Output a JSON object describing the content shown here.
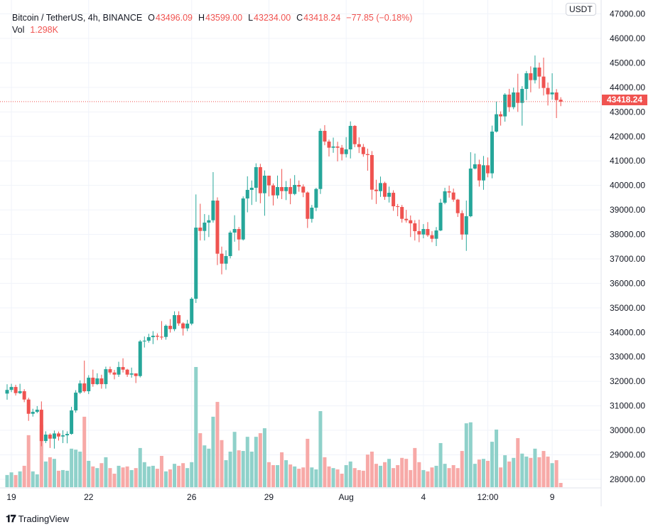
{
  "legend": {
    "symbol": "Bitcoin / TetherUS, 4h, BINANCE",
    "open_label": "O",
    "open": "43496.09",
    "high_label": "H",
    "high": "43599.00",
    "low_label": "L",
    "low": "43234.00",
    "close_label": "C",
    "close": "43418.24",
    "change": "−77.85 (−0.18%)",
    "vol_label": "Vol",
    "vol": "1.298K"
  },
  "currency_badge": "USDT",
  "last_price_label": "43418.24",
  "branding": "TradingView",
  "colors": {
    "up": "#26a69a",
    "down": "#ef5350",
    "up_volume": "#8fd1ca",
    "down_volume": "#f7a9a7",
    "grid": "#f0f3fa"
  },
  "chart_data": {
    "type": "candlestick",
    "symbol": "BTCUSDT",
    "interval": "4h",
    "ylim": [
      27800,
      47300
    ],
    "y_ticks": [
      "47000.00",
      "46000.00",
      "45000.00",
      "44000.00",
      "43000.00",
      "42000.00",
      "41000.00",
      "40000.00",
      "39000.00",
      "38000.00",
      "37000.00",
      "36000.00",
      "35000.00",
      "34000.00",
      "33000.00",
      "32000.00",
      "31000.00",
      "30000.00",
      "29000.00",
      "28000.00"
    ],
    "x_ticks": [
      {
        "label": "19",
        "index": 1
      },
      {
        "label": "22",
        "index": 19
      },
      {
        "label": "26",
        "index": 43
      },
      {
        "label": "29",
        "index": 61
      },
      {
        "label": "Aug",
        "index": 79
      },
      {
        "label": "4",
        "index": 97
      },
      {
        "label": "12:00",
        "index": 112
      },
      {
        "label": "9",
        "index": 127
      }
    ],
    "grid": true,
    "ohlc": [
      [
        31500,
        31880,
        31250,
        31650
      ],
      [
        31650,
        31900,
        31560,
        31770
      ],
      [
        31770,
        31860,
        31420,
        31519
      ],
      [
        31519,
        31900,
        31480,
        31596
      ],
      [
        31596,
        31680,
        31150,
        31257
      ],
      [
        31257,
        31330,
        30386,
        30676
      ],
      [
        30676,
        30880,
        30560,
        30754
      ],
      [
        30754,
        30990,
        30700,
        30841
      ],
      [
        30841,
        31180,
        29350,
        29563
      ],
      [
        29563,
        29960,
        29480,
        29825
      ],
      [
        29825,
        29880,
        29280,
        29660
      ],
      [
        29660,
        29990,
        29253,
        29873
      ],
      [
        29873,
        29950,
        29580,
        29747
      ],
      [
        29747,
        30000,
        29480,
        29796
      ],
      [
        29796,
        29960,
        29470,
        29854
      ],
      [
        29854,
        30960,
        29820,
        30812
      ],
      [
        30812,
        31640,
        30720,
        31538
      ],
      [
        31538,
        32040,
        31480,
        31915
      ],
      [
        31915,
        32845,
        31540,
        31596
      ],
      [
        31596,
        32250,
        31480,
        32148
      ],
      [
        32148,
        32480,
        31780,
        31886
      ],
      [
        31886,
        32330,
        31850,
        32119
      ],
      [
        32119,
        32270,
        31700,
        31886
      ],
      [
        31886,
        32600,
        31700,
        32496
      ],
      [
        32496,
        32600,
        32280,
        32360
      ],
      [
        32360,
        32470,
        32080,
        32274
      ],
      [
        32274,
        32800,
        32180,
        32583
      ],
      [
        32583,
        32940,
        32360,
        32477
      ],
      [
        32477,
        32510,
        32180,
        32274
      ],
      [
        32274,
        32560,
        32150,
        32322
      ],
      [
        32322,
        32330,
        31930,
        32216
      ],
      [
        32216,
        33690,
        32160,
        33629
      ],
      [
        33629,
        33830,
        33380,
        33658
      ],
      [
        33658,
        33940,
        33580,
        33803
      ],
      [
        33803,
        34050,
        33520,
        33861
      ],
      [
        33861,
        33960,
        33680,
        33822
      ],
      [
        33822,
        34460,
        33700,
        33813
      ],
      [
        33813,
        34320,
        33700,
        34268
      ],
      [
        34268,
        34540,
        33990,
        34132
      ],
      [
        34132,
        34860,
        34050,
        34703
      ],
      [
        34703,
        34860,
        34270,
        34365
      ],
      [
        34365,
        34410,
        33870,
        34161
      ],
      [
        34161,
        34510,
        34050,
        34355
      ],
      [
        34355,
        35430,
        34290,
        35371
      ],
      [
        35371,
        39630,
        35200,
        38276
      ],
      [
        38276,
        39250,
        37750,
        38140
      ],
      [
        38140,
        38830,
        37750,
        38479
      ],
      [
        38479,
        38790,
        37890,
        38576
      ],
      [
        38576,
        40541,
        38480,
        39379
      ],
      [
        39379,
        39510,
        36746,
        37211
      ],
      [
        37211,
        37500,
        36369,
        36804
      ],
      [
        36804,
        37350,
        36550,
        37114
      ],
      [
        37114,
        38150,
        37020,
        38073
      ],
      [
        38073,
        38780,
        37700,
        38218
      ],
      [
        38218,
        38300,
        37340,
        37792
      ],
      [
        37792,
        39550,
        37750,
        39466
      ],
      [
        39466,
        40370,
        38900,
        39815
      ],
      [
        39815,
        40200,
        39200,
        39902
      ],
      [
        39902,
        40900,
        39330,
        40744
      ],
      [
        40744,
        40880,
        39270,
        39679
      ],
      [
        39679,
        40610,
        38760,
        40396
      ],
      [
        40396,
        40400,
        39550,
        39999
      ],
      [
        39999,
        40080,
        39180,
        39592
      ],
      [
        39592,
        40400,
        39460,
        39931
      ],
      [
        39931,
        40670,
        39440,
        39766
      ],
      [
        39766,
        40180,
        39400,
        39931
      ],
      [
        39931,
        40280,
        39230,
        39650
      ],
      [
        39650,
        40420,
        39600,
        40018
      ],
      [
        40018,
        40200,
        39740,
        39950
      ],
      [
        39950,
        40040,
        39520,
        39708
      ],
      [
        39708,
        39750,
        38260,
        38634
      ],
      [
        38634,
        39200,
        38480,
        39089
      ],
      [
        39089,
        39900,
        38950,
        39853
      ],
      [
        39853,
        42322,
        39650,
        42225
      ],
      [
        42225,
        42460,
        41640,
        41789
      ],
      [
        41789,
        41870,
        41180,
        41538
      ],
      [
        41538,
        41950,
        41330,
        41586
      ],
      [
        41586,
        41780,
        40980,
        41538
      ],
      [
        41538,
        41650,
        41020,
        41276
      ],
      [
        41276,
        41970,
        41140,
        41470
      ],
      [
        41470,
        42612,
        41100,
        42428
      ],
      [
        42428,
        42460,
        41560,
        41683
      ],
      [
        41683,
        41960,
        41320,
        41567
      ],
      [
        41567,
        41690,
        41170,
        41276
      ],
      [
        41276,
        41500,
        40600,
        41238
      ],
      [
        41238,
        41400,
        39418,
        39824
      ],
      [
        39824,
        40230,
        39240,
        39766
      ],
      [
        39766,
        40360,
        39530,
        40095
      ],
      [
        40095,
        40150,
        39410,
        39534
      ],
      [
        39534,
        39950,
        39300,
        39698
      ],
      [
        39698,
        39800,
        38960,
        39147
      ],
      [
        39147,
        39240,
        38740,
        39118
      ],
      [
        39118,
        39200,
        38480,
        38634
      ],
      [
        38634,
        39000,
        38480,
        38576
      ],
      [
        38576,
        38770,
        37890,
        38450
      ],
      [
        38450,
        38580,
        37750,
        38131
      ],
      [
        38131,
        38600,
        37680,
        37995
      ],
      [
        37995,
        38420,
        37840,
        38218
      ],
      [
        38218,
        38500,
        37900,
        37966
      ],
      [
        37966,
        38130,
        37680,
        37821
      ],
      [
        37821,
        38300,
        37520,
        38160
      ],
      [
        38160,
        39450,
        38130,
        39292
      ],
      [
        39292,
        39900,
        39230,
        39757
      ],
      [
        39757,
        39990,
        39500,
        39708
      ],
      [
        39708,
        39870,
        39330,
        39418
      ],
      [
        39418,
        39450,
        38710,
        38866
      ],
      [
        38866,
        38980,
        37780,
        37995
      ],
      [
        37995,
        39380,
        37327,
        38740
      ],
      [
        38740,
        41354,
        38700,
        40686
      ],
      [
        40686,
        41300,
        40650,
        40860
      ],
      [
        40860,
        41050,
        39950,
        40202
      ],
      [
        40202,
        41200,
        39820,
        40821
      ],
      [
        40821,
        41140,
        40330,
        40492
      ],
      [
        40492,
        42440,
        40289,
        42196
      ],
      [
        42196,
        43420,
        42160,
        42903
      ],
      [
        42903,
        43020,
        42440,
        42816
      ],
      [
        42816,
        43764,
        42600,
        43706
      ],
      [
        43706,
        43940,
        43000,
        43193
      ],
      [
        43193,
        43990,
        43110,
        43793
      ],
      [
        43793,
        44558,
        43000,
        43367
      ],
      [
        43367,
        44050,
        42438,
        43938
      ],
      [
        43938,
        44670,
        43480,
        44577
      ],
      [
        44577,
        44860,
        43800,
        44297
      ],
      [
        44297,
        45303,
        44160,
        44810
      ],
      [
        44810,
        45013,
        43950,
        44442
      ],
      [
        44442,
        45216,
        43670,
        43977
      ],
      [
        43977,
        44200,
        43261,
        43716
      ],
      [
        43716,
        44577,
        43500,
        43793
      ],
      [
        43793,
        43930,
        42748,
        43483
      ],
      [
        43496.09,
        43599,
        43234,
        43418.24
      ]
    ],
    "volume_k": [
      3.7,
      4.5,
      3.7,
      4.8,
      6.5,
      15.8,
      4.8,
      3.9,
      19.0,
      7.8,
      9.1,
      8.6,
      5.0,
      5.2,
      5.0,
      11.7,
      11.4,
      10.8,
      21.4,
      8.0,
      6.3,
      5.8,
      7.3,
      9.1,
      5.8,
      4.1,
      6.5,
      6.0,
      6.3,
      5.2,
      5.8,
      11.9,
      7.6,
      6.3,
      6.5,
      5.6,
      9.5,
      4.8,
      5.4,
      7.1,
      6.5,
      7.3,
      5.8,
      7.6,
      36.5,
      16.4,
      12.7,
      11.7,
      21.4,
      25.9,
      14.3,
      8.2,
      10.8,
      16.8,
      11.2,
      11.0,
      15.3,
      10.8,
      15.3,
      16.4,
      17.9,
      7.6,
      6.7,
      6.7,
      10.6,
      8.2,
      6.9,
      6.3,
      5.6,
      6.0,
      14.7,
      6.0,
      5.4,
      23.1,
      9.1,
      6.3,
      5.8,
      5.4,
      4.1,
      6.7,
      7.8,
      5.8,
      5.2,
      5.0,
      9.9,
      10.8,
      7.1,
      6.5,
      7.6,
      8.6,
      5.8,
      6.7,
      8.9,
      8.6,
      5.2,
      11.9,
      7.6,
      5.2,
      4.8,
      6.0,
      6.5,
      13.4,
      7.1,
      5.8,
      6.7,
      5.8,
      11.0,
      19.4,
      19.7,
      7.1,
      8.4,
      8.6,
      8.0,
      13.8,
      17.5,
      6.0,
      9.7,
      7.8,
      8.9,
      14.9,
      10.2,
      9.3,
      8.9,
      11.7,
      9.1,
      11.0,
      9.3,
      7.3,
      8.2,
      1.298
    ],
    "last_price": 43418.24
  }
}
